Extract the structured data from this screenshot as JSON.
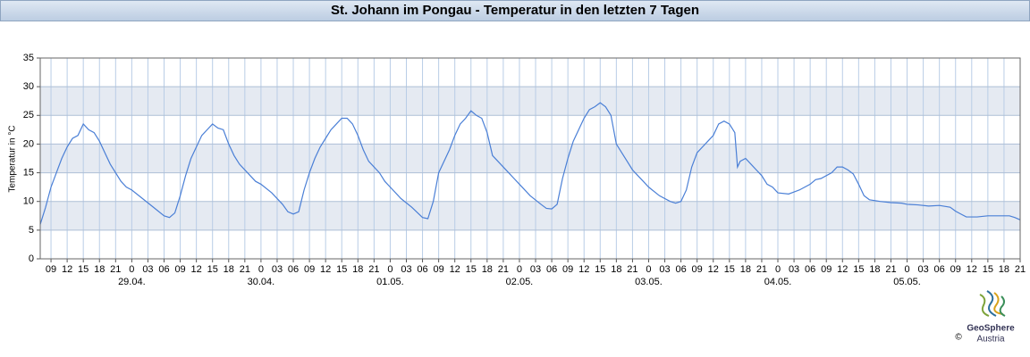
{
  "chart_data": {
    "type": "line",
    "title": "St. Johann im Pongau - Temperatur in den letzten 7 Tagen",
    "ylabel": "Temperatur in °C",
    "x": [
      7,
      8,
      9,
      10,
      11,
      12,
      13,
      14,
      15,
      16,
      17,
      18,
      19,
      20,
      21,
      22,
      23,
      24,
      26,
      28,
      30,
      31,
      32,
      33,
      34,
      35,
      36,
      37,
      38,
      39,
      40,
      41,
      42,
      43,
      44,
      46,
      47,
      48,
      50,
      52,
      53,
      54,
      55,
      56,
      57,
      58,
      59,
      60,
      61,
      62,
      63,
      64,
      65,
      66,
      67,
      68,
      70,
      71,
      72,
      74,
      76,
      78,
      79,
      80,
      81,
      82,
      83,
      84,
      85,
      86,
      87,
      88,
      89,
      90,
      91,
      92,
      94,
      95,
      96,
      98,
      100,
      101,
      102,
      103,
      104,
      105,
      106,
      107,
      108,
      109,
      110,
      111,
      112,
      113,
      114,
      115,
      116,
      117,
      118,
      119,
      120,
      122,
      124,
      125,
      126,
      127,
      128,
      129,
      130,
      131,
      132,
      133,
      134,
      135,
      136,
      136.5,
      137,
      138,
      139,
      140,
      141,
      142,
      143,
      144,
      146,
      148,
      150,
      151,
      152,
      154,
      155,
      156,
      157,
      158,
      159,
      160,
      161,
      163,
      165,
      167,
      168,
      170,
      172,
      174,
      176,
      177,
      178,
      179,
      181,
      183,
      185,
      187,
      188,
      189
    ],
    "series": [
      {
        "color": "#4a7fd6",
        "values": [
          6,
          9,
          12.5,
          15,
          17.5,
          19.5,
          21,
          21.5,
          23.5,
          22.5,
          22,
          20.5,
          18.5,
          16.5,
          15,
          13.5,
          12.5,
          12,
          10.5,
          9,
          7.5,
          7.2,
          8,
          11,
          14.5,
          17.5,
          19.5,
          21.5,
          22.5,
          23.5,
          22.8,
          22.5,
          20,
          18,
          16.5,
          14.5,
          13.5,
          13,
          11.5,
          9.5,
          8.2,
          7.8,
          8.2,
          12,
          15,
          17.5,
          19.5,
          21,
          22.5,
          23.5,
          24.5,
          24.5,
          23.5,
          21.5,
          19,
          17,
          15,
          13.5,
          12.5,
          10.5,
          9,
          7.2,
          7,
          10,
          15,
          17,
          19,
          21.5,
          23.5,
          24.5,
          25.8,
          25,
          24.5,
          22,
          18,
          17,
          15,
          14,
          13,
          11,
          9.5,
          8.8,
          8.7,
          9.5,
          14,
          17.5,
          20.5,
          22.5,
          24.5,
          26,
          26.5,
          27.2,
          26.5,
          25,
          20,
          18.5,
          17,
          15.5,
          14.5,
          13.5,
          12.5,
          11,
          10,
          9.7,
          10,
          12,
          16,
          18.5,
          19.5,
          20.5,
          21.5,
          23.5,
          24,
          23.5,
          22,
          16,
          17,
          17.5,
          16.5,
          15.5,
          14.5,
          13,
          12.5,
          11.5,
          11.3,
          12,
          13,
          13.8,
          14,
          15,
          16,
          16,
          15.5,
          14.8,
          13,
          11,
          10.3,
          10,
          9.8,
          9.7,
          9.5,
          9.4,
          9.2,
          9.3,
          9,
          8.3,
          7.8,
          7.3,
          7.3,
          7.5,
          7.5,
          7.5,
          7.2,
          6.8
        ]
      }
    ],
    "xlim": [
      7,
      189
    ],
    "ylim": [
      0,
      35
    ],
    "yticks": [
      0,
      5,
      10,
      15,
      20,
      25,
      30,
      35
    ],
    "xticks": [
      {
        "value": 9,
        "label": "09"
      },
      12,
      15,
      18,
      21,
      {
        "value": 24,
        "label": "0"
      },
      {
        "value": 27,
        "label": "03"
      },
      {
        "value": 30,
        "label": "06"
      },
      {
        "value": 33,
        "label": "09"
      },
      {
        "value": 36,
        "label": "12"
      },
      {
        "value": 39,
        "label": "15"
      },
      {
        "value": 42,
        "label": "18"
      },
      {
        "value": 45,
        "label": "21"
      },
      {
        "value": 48,
        "label": "0"
      },
      {
        "value": 51,
        "label": "03"
      },
      {
        "value": 54,
        "label": "06"
      },
      {
        "value": 57,
        "label": "09"
      },
      {
        "value": 60,
        "label": "12"
      },
      {
        "value": 63,
        "label": "15"
      },
      {
        "value": 66,
        "label": "18"
      },
      {
        "value": 69,
        "label": "21"
      },
      {
        "value": 72,
        "label": "0"
      },
      {
        "value": 75,
        "label": "03"
      },
      {
        "value": 78,
        "label": "06"
      },
      {
        "value": 81,
        "label": "09"
      },
      {
        "value": 84,
        "label": "12"
      },
      {
        "value": 87,
        "label": "15"
      },
      {
        "value": 90,
        "label": "18"
      },
      {
        "value": 93,
        "label": "21"
      },
      {
        "value": 96,
        "label": "0"
      },
      {
        "value": 99,
        "label": "03"
      },
      {
        "value": 102,
        "label": "06"
      },
      {
        "value": 105,
        "label": "09"
      },
      {
        "value": 108,
        "label": "12"
      },
      {
        "value": 111,
        "label": "15"
      },
      {
        "value": 114,
        "label": "18"
      },
      {
        "value": 117,
        "label": "21"
      },
      {
        "value": 120,
        "label": "0"
      },
      {
        "value": 123,
        "label": "03"
      },
      {
        "value": 126,
        "label": "06"
      },
      {
        "value": 129,
        "label": "09"
      },
      {
        "value": 132,
        "label": "12"
      },
      {
        "value": 135,
        "label": "15"
      },
      {
        "value": 138,
        "label": "18"
      },
      {
        "value": 141,
        "label": "21"
      },
      {
        "value": 144,
        "label": "0"
      },
      {
        "value": 147,
        "label": "03"
      },
      {
        "value": 150,
        "label": "06"
      },
      {
        "value": 153,
        "label": "09"
      },
      {
        "value": 156,
        "label": "12"
      },
      {
        "value": 159,
        "label": "15"
      },
      {
        "value": 162,
        "label": "18"
      },
      {
        "value": 165,
        "label": "21"
      },
      {
        "value": 168,
        "label": "0"
      },
      {
        "value": 171,
        "label": "03"
      },
      {
        "value": 174,
        "label": "06"
      },
      {
        "value": 177,
        "label": "09"
      },
      {
        "value": 180,
        "label": "12"
      },
      {
        "value": 183,
        "label": "15"
      },
      {
        "value": 186,
        "label": "18"
      },
      {
        "value": 189,
        "label": "21"
      }
    ],
    "xdates": [
      {
        "value": 24,
        "label": "29.04."
      },
      {
        "value": 48,
        "label": "30.04."
      },
      {
        "value": 72,
        "label": "01.05."
      },
      {
        "value": 96,
        "label": "02.05."
      },
      {
        "value": 120,
        "label": "03.05."
      },
      {
        "value": 144,
        "label": "04.05."
      },
      {
        "value": 168,
        "label": "05.05."
      }
    ],
    "grid": true,
    "band_color": "#e5eaf2",
    "logo": {
      "name": "GeoSphere",
      "sub": "Austria",
      "copyright": "©"
    }
  }
}
